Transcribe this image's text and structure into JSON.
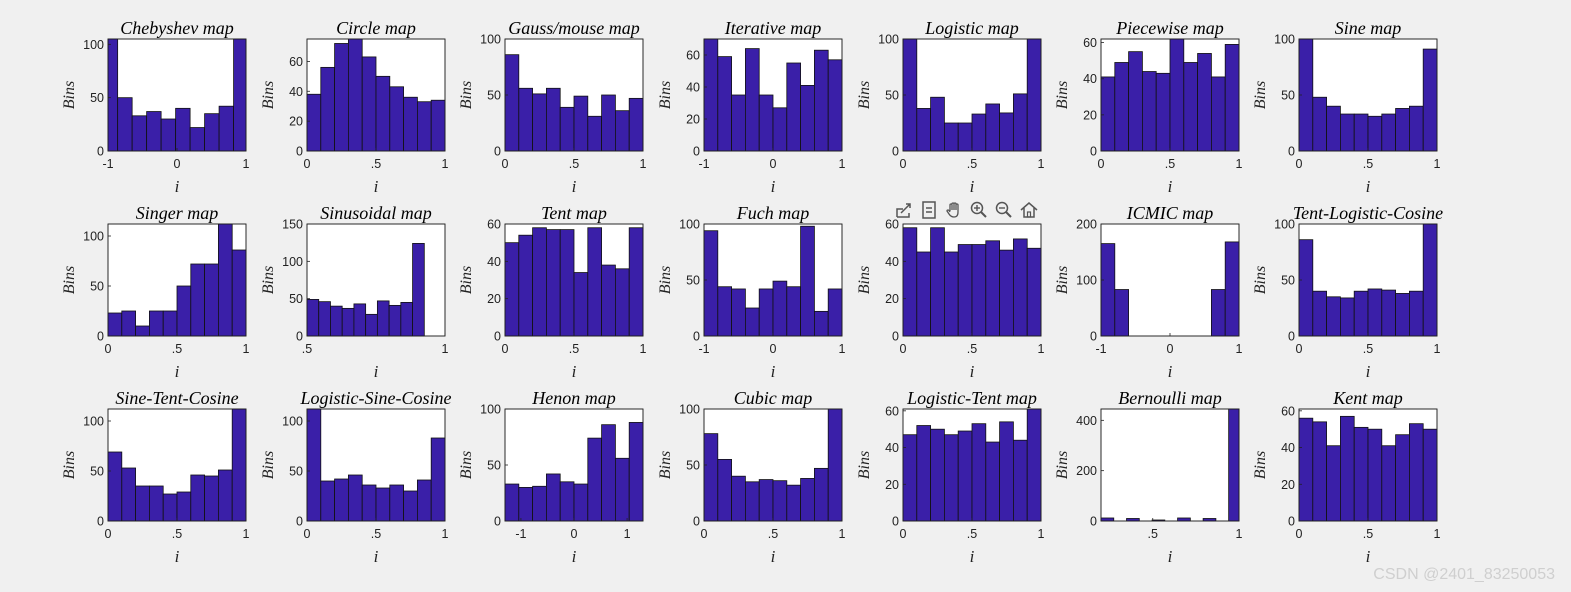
{
  "watermark": "CSDN @2401_83250053",
  "toolbar": {
    "icons": [
      "export-icon",
      "brush-icon",
      "pan-icon",
      "zoom-in-icon",
      "zoom-out-icon",
      "home-icon"
    ]
  },
  "colors": {
    "bar": "#3a1fa8",
    "background": "#f0f0f0"
  },
  "chart_data": [
    {
      "type": "bar",
      "title": "Chebyshev map",
      "xlabel": "i",
      "ylabel": "Bins",
      "xlim": [
        -1,
        1
      ],
      "xticks": [
        -1,
        0,
        1
      ],
      "ylim": [
        0,
        105
      ],
      "yticks": [
        0,
        50,
        100
      ],
      "bin_edges": [
        -1.04,
        -0.86,
        -0.65,
        -0.44,
        -0.23,
        -0.02,
        0.19,
        0.4,
        0.61,
        0.82,
        1.03
      ],
      "values": [
        105,
        50,
        33,
        37,
        30,
        40,
        22,
        35,
        42,
        105
      ]
    },
    {
      "type": "bar",
      "title": "Circle map",
      "xlabel": "i",
      "ylabel": "Bins",
      "xlim": [
        0,
        1
      ],
      "xticks": [
        0,
        0.5,
        1
      ],
      "ylim": [
        0,
        75
      ],
      "yticks": [
        0,
        20,
        40,
        60
      ],
      "bin_edges": [
        0,
        0.1,
        0.2,
        0.3,
        0.4,
        0.5,
        0.6,
        0.7,
        0.8,
        0.9,
        1
      ],
      "values": [
        38,
        56,
        72,
        75,
        63,
        50,
        43,
        36,
        33,
        34
      ]
    },
    {
      "type": "bar",
      "title": "Gauss/mouse map",
      "xlabel": "i",
      "ylabel": "Bins",
      "xlim": [
        0,
        1
      ],
      "xticks": [
        0,
        0.5,
        1
      ],
      "ylim": [
        0,
        100
      ],
      "yticks": [
        0,
        50,
        100
      ],
      "bin_edges": [
        0,
        0.1,
        0.2,
        0.3,
        0.4,
        0.5,
        0.6,
        0.7,
        0.8,
        0.9,
        1
      ],
      "values": [
        86,
        56,
        51,
        56,
        39,
        49,
        31,
        50,
        36,
        47
      ]
    },
    {
      "type": "bar",
      "title": "Iterative map",
      "xlabel": "i",
      "ylabel": "Bins",
      "xlim": [
        -1,
        1
      ],
      "xticks": [
        -1,
        0,
        1
      ],
      "ylim": [
        0,
        70
      ],
      "yticks": [
        0,
        20,
        40,
        60
      ],
      "bin_edges": [
        -1,
        -0.8,
        -0.6,
        -0.4,
        -0.2,
        0,
        0.2,
        0.4,
        0.6,
        0.8,
        1
      ],
      "values": [
        70,
        59,
        35,
        64,
        35,
        27,
        55,
        41,
        63,
        57
      ]
    },
    {
      "type": "bar",
      "title": "Logistic map",
      "xlabel": "i",
      "ylabel": "Bins",
      "xlim": [
        0,
        1
      ],
      "xticks": [
        0,
        0.5,
        1
      ],
      "ylim": [
        0,
        100
      ],
      "yticks": [
        0,
        50,
        100
      ],
      "bin_edges": [
        0,
        0.1,
        0.2,
        0.3,
        0.4,
        0.5,
        0.6,
        0.7,
        0.8,
        0.9,
        1
      ],
      "values": [
        100,
        38,
        48,
        25,
        25,
        33,
        42,
        34,
        51,
        100
      ]
    },
    {
      "type": "bar",
      "title": "Piecewise map",
      "xlabel": "i",
      "ylabel": "Bins",
      "xlim": [
        0,
        1
      ],
      "xticks": [
        0,
        0.5,
        1
      ],
      "ylim": [
        0,
        62
      ],
      "yticks": [
        0,
        20,
        40,
        60
      ],
      "bin_edges": [
        0,
        0.1,
        0.2,
        0.3,
        0.4,
        0.5,
        0.6,
        0.7,
        0.8,
        0.9,
        1
      ],
      "values": [
        41,
        49,
        55,
        44,
        43,
        62,
        49,
        54,
        41,
        59
      ]
    },
    {
      "type": "bar",
      "title": "Sine map",
      "xlabel": "i",
      "ylabel": "Bins",
      "xlim": [
        0,
        1
      ],
      "xticks": [
        0,
        0.5,
        1
      ],
      "ylim": [
        0,
        100
      ],
      "yticks": [
        0,
        50,
        100
      ],
      "bin_edges": [
        0,
        0.1,
        0.2,
        0.3,
        0.4,
        0.5,
        0.6,
        0.7,
        0.8,
        0.9,
        1
      ],
      "values": [
        100,
        48,
        40,
        33,
        33,
        31,
        33,
        38,
        40,
        91
      ]
    },
    {
      "type": "bar",
      "title": "Singer map",
      "xlabel": "i",
      "ylabel": "Bins",
      "xlim": [
        0,
        1
      ],
      "xticks": [
        0,
        0.5,
        1
      ],
      "ylim": [
        0,
        112
      ],
      "yticks": [
        0,
        50,
        100
      ],
      "bin_edges": [
        0,
        0.1,
        0.2,
        0.3,
        0.4,
        0.5,
        0.6,
        0.7,
        0.8,
        0.9,
        1
      ],
      "values": [
        23,
        25,
        10,
        25,
        25,
        50,
        72,
        72,
        112,
        86
      ]
    },
    {
      "type": "bar",
      "title": "Sinusoidal map",
      "xlabel": "i",
      "ylabel": "Bins",
      "xlim": [
        0.5,
        1
      ],
      "xticks": [
        0.5,
        1
      ],
      "ylim": [
        0,
        150
      ],
      "yticks": [
        0,
        50,
        100,
        150
      ],
      "bin_edges": [
        0.5,
        0.5425,
        0.585,
        0.6275,
        0.67,
        0.7125,
        0.755,
        0.7975,
        0.84,
        0.8825,
        0.925
      ],
      "values": [
        49,
        46,
        40,
        37,
        43,
        29,
        47,
        41,
        45,
        124
      ]
    },
    {
      "type": "bar",
      "title": "Tent map",
      "xlabel": "i",
      "ylabel": "Bins",
      "xlim": [
        0,
        1
      ],
      "xticks": [
        0,
        0.5,
        1
      ],
      "ylim": [
        0,
        60
      ],
      "yticks": [
        0,
        20,
        40,
        60
      ],
      "bin_edges": [
        0,
        0.1,
        0.2,
        0.3,
        0.4,
        0.5,
        0.6,
        0.7,
        0.8,
        0.9,
        1
      ],
      "values": [
        50,
        54,
        58,
        57,
        57,
        34,
        58,
        38,
        36,
        58
      ]
    },
    {
      "type": "bar",
      "title": "Fuch map",
      "xlabel": "i",
      "ylabel": "Bins",
      "xlim": [
        -1,
        1
      ],
      "xticks": [
        -1,
        0,
        1
      ],
      "ylim": [
        0,
        100
      ],
      "yticks": [
        0,
        50,
        100
      ],
      "bin_edges": [
        -1,
        -0.8,
        -0.6,
        -0.4,
        -0.2,
        0,
        0.2,
        0.4,
        0.6,
        0.8,
        1
      ],
      "values": [
        94,
        44,
        42,
        25,
        42,
        49,
        44,
        98,
        22,
        42
      ]
    },
    {
      "type": "bar",
      "title": "",
      "xlabel": "i",
      "ylabel": "Bins",
      "xlim": [
        0,
        1
      ],
      "xticks": [
        0,
        0.5,
        1
      ],
      "ylim": [
        0,
        60
      ],
      "yticks": [
        0,
        20,
        40,
        60
      ],
      "bin_edges": [
        0,
        0.1,
        0.2,
        0.3,
        0.4,
        0.5,
        0.6,
        0.7,
        0.8,
        0.9,
        1
      ],
      "values": [
        58,
        45,
        58,
        45,
        49,
        49,
        51,
        46,
        52,
        47
      ]
    },
    {
      "type": "bar",
      "title": "ICMIC map",
      "xlabel": "i",
      "ylabel": "Bins",
      "xlim": [
        -1,
        1
      ],
      "xticks": [
        -1,
        0,
        1
      ],
      "ylim": [
        0,
        200
      ],
      "yticks": [
        0,
        100,
        200
      ],
      "bin_edges": [
        -1,
        -0.8,
        -0.6,
        -0.4,
        -0.2,
        0,
        0.2,
        0.4,
        0.6,
        0.8,
        1
      ],
      "values": [
        165,
        83,
        0,
        0,
        0,
        0,
        0,
        0,
        83,
        168
      ]
    },
    {
      "type": "bar",
      "title": "Tent-Logistic-Cosine",
      "xlabel": "i",
      "ylabel": "Bins",
      "xlim": [
        0,
        1
      ],
      "xticks": [
        0,
        0.5,
        1
      ],
      "ylim": [
        0,
        100
      ],
      "yticks": [
        0,
        50,
        100
      ],
      "bin_edges": [
        0,
        0.1,
        0.2,
        0.3,
        0.4,
        0.5,
        0.6,
        0.7,
        0.8,
        0.9,
        1
      ],
      "values": [
        86,
        40,
        35,
        34,
        40,
        42,
        41,
        38,
        40,
        103
      ]
    },
    {
      "type": "bar",
      "title": "Sine-Tent-Cosine",
      "xlabel": "i",
      "ylabel": "Bins",
      "xlim": [
        0,
        1
      ],
      "xticks": [
        0,
        0.5,
        1
      ],
      "ylim": [
        0,
        112
      ],
      "yticks": [
        0,
        50,
        100
      ],
      "bin_edges": [
        0,
        0.1,
        0.2,
        0.3,
        0.4,
        0.5,
        0.6,
        0.7,
        0.8,
        0.9,
        1
      ],
      "values": [
        69,
        53,
        35,
        35,
        27,
        29,
        46,
        45,
        51,
        112
      ]
    },
    {
      "type": "bar",
      "title": "Logistic-Sine-Cosine",
      "xlabel": "i",
      "ylabel": "Bins",
      "xlim": [
        0,
        1
      ],
      "xticks": [
        0,
        0.5,
        1
      ],
      "ylim": [
        0,
        112
      ],
      "yticks": [
        0,
        50,
        100
      ],
      "bin_edges": [
        0,
        0.1,
        0.2,
        0.3,
        0.4,
        0.5,
        0.6,
        0.7,
        0.8,
        0.9,
        1
      ],
      "values": [
        112,
        40,
        42,
        46,
        36,
        33,
        36,
        30,
        41,
        83
      ]
    },
    {
      "type": "bar",
      "title": "Henon map",
      "xlabel": "i",
      "ylabel": "Bins",
      "xlim": [
        -1.3,
        1.3
      ],
      "xticks": [
        -1,
        0,
        1
      ],
      "ylim": [
        0,
        100
      ],
      "yticks": [
        0,
        50,
        100
      ],
      "bin_edges": [
        -1.3,
        -1.04,
        -0.78,
        -0.52,
        -0.26,
        0,
        0.26,
        0.52,
        0.78,
        1.04,
        1.3
      ],
      "values": [
        33,
        30,
        31,
        42,
        35,
        33,
        74,
        86,
        56,
        88
      ]
    },
    {
      "type": "bar",
      "title": "Cubic map",
      "xlabel": "i",
      "ylabel": "Bins",
      "xlim": [
        0,
        1
      ],
      "xticks": [
        0,
        0.5,
        1
      ],
      "ylim": [
        0,
        100
      ],
      "yticks": [
        0,
        50,
        100
      ],
      "bin_edges": [
        0,
        0.1,
        0.2,
        0.3,
        0.4,
        0.5,
        0.6,
        0.7,
        0.8,
        0.9,
        1
      ],
      "values": [
        78,
        55,
        40,
        35,
        37,
        36,
        32,
        38,
        47,
        101
      ]
    },
    {
      "type": "bar",
      "title": "Logistic-Tent map",
      "xlabel": "i",
      "ylabel": "Bins",
      "xlim": [
        0,
        1
      ],
      "xticks": [
        0,
        0.5,
        1
      ],
      "ylim": [
        0,
        61
      ],
      "yticks": [
        0,
        20,
        40,
        60
      ],
      "bin_edges": [
        0,
        0.1,
        0.2,
        0.3,
        0.4,
        0.5,
        0.6,
        0.7,
        0.8,
        0.9,
        1
      ],
      "values": [
        47,
        52,
        50,
        47,
        49,
        53,
        43,
        54,
        44,
        61
      ]
    },
    {
      "type": "bar",
      "title": "Bernoulli map",
      "xlabel": "i",
      "ylabel": "Bins",
      "xlim": [
        0.2,
        1
      ],
      "xticks": [
        0.5,
        1
      ],
      "ylim": [
        0,
        445
      ],
      "yticks": [
        0,
        200,
        400
      ],
      "bin_edges": [
        0.2,
        0.274,
        0.348,
        0.422,
        0.496,
        0.57,
        0.644,
        0.718,
        0.792,
        0.866,
        0.94,
        1
      ],
      "values": [
        12,
        0,
        10,
        0,
        4,
        0,
        12,
        0,
        10,
        0,
        445
      ]
    },
    {
      "type": "bar",
      "title": "Kent map",
      "xlabel": "i",
      "ylabel": "Bins",
      "xlim": [
        0,
        1
      ],
      "xticks": [
        0,
        0.5,
        1
      ],
      "ylim": [
        0,
        61
      ],
      "yticks": [
        0,
        20,
        40,
        60
      ],
      "bin_edges": [
        0,
        0.1,
        0.2,
        0.3,
        0.4,
        0.5,
        0.6,
        0.7,
        0.8,
        0.9,
        1
      ],
      "values": [
        56,
        54,
        41,
        57,
        51,
        50,
        41,
        47,
        53,
        50
      ]
    }
  ]
}
